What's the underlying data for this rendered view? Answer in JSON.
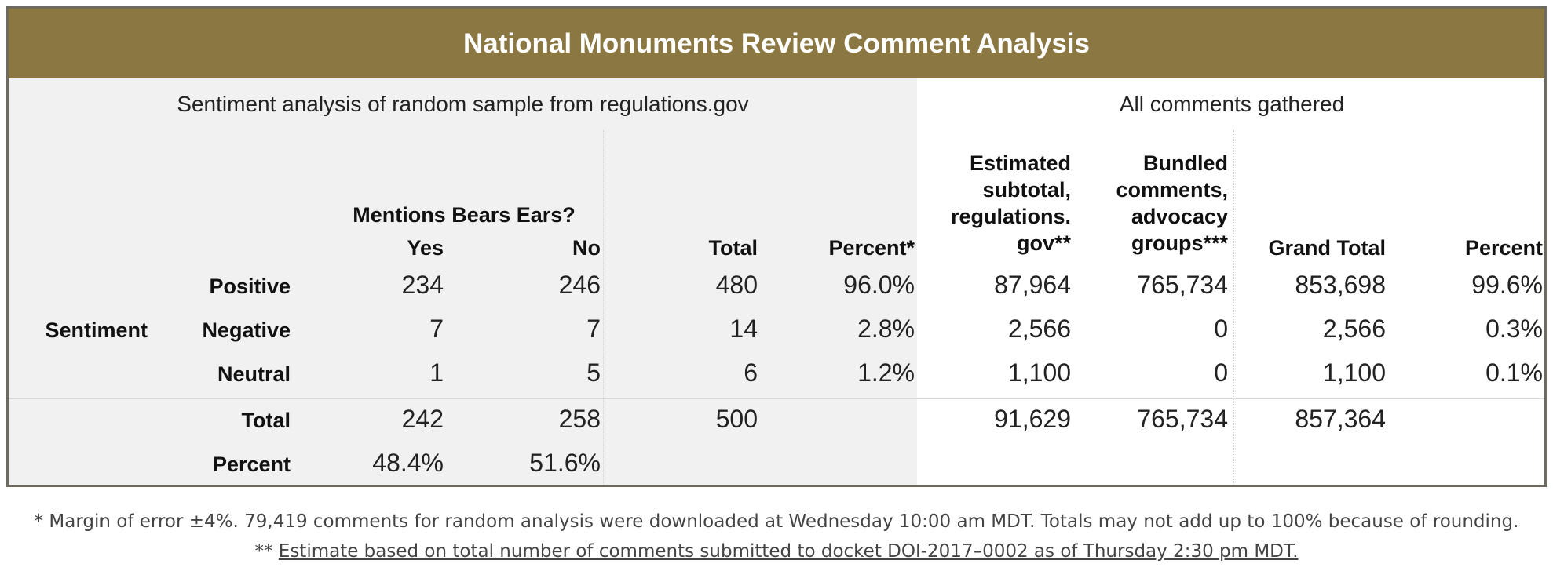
{
  "title": "National Monuments Review Comment Analysis",
  "sections": {
    "left": "Sentiment analysis of random sample from regulations.gov",
    "right": "All comments gathered"
  },
  "headers": {
    "mentions_group": "Mentions Bears Ears?",
    "yes": "Yes",
    "no": "No",
    "total": "Total",
    "percent_star": "Percent*",
    "estimated_subtotal": "Estimated subtotal, regulations. gov**",
    "estimated_lines": [
      "Estimated",
      "subtotal,",
      "regulations.",
      "gov**"
    ],
    "bundled": "Bundled comments, advocacy groups***",
    "bundled_lines": [
      "Bundled",
      "comments,",
      "advocacy",
      "groups***"
    ],
    "grand_total": "Grand Total",
    "percent": "Percent"
  },
  "row_group_label": "Sentiment",
  "rows": [
    {
      "label": "Positive",
      "yes": "234",
      "no": "246",
      "total": "480",
      "percent_star": "96.0%",
      "estimated": "87,964",
      "bundled": "765,734",
      "grand_total": "853,698",
      "percent": "99.6%"
    },
    {
      "label": "Negative",
      "yes": "7",
      "no": "7",
      "total": "14",
      "percent_star": "2.8%",
      "estimated": "2,566",
      "bundled": "0",
      "grand_total": "2,566",
      "percent": "0.3%"
    },
    {
      "label": "Neutral",
      "yes": "1",
      "no": "5",
      "total": "6",
      "percent_star": "1.2%",
      "estimated": "1,100",
      "bundled": "0",
      "grand_total": "1,100",
      "percent": "0.1%"
    }
  ],
  "totals": {
    "label": "Total",
    "yes": "242",
    "no": "258",
    "total": "500",
    "estimated": "91,629",
    "bundled": "765,734",
    "grand_total": "857,364"
  },
  "percent_row": {
    "label": "Percent",
    "yes": "48.4%",
    "no": "51.6%"
  },
  "footnotes": {
    "line1": "* Margin of error ±4%. 79,419 comments for random analysis were downloaded at Wednesday 10:00 am MDT. Totals may not add up to 100% because of rounding.",
    "line2_prefix": "** ",
    "line2_link": "Estimate based on total number of comments submitted to docket DOI-2017–0002 as of Thursday 2:30 pm MDT."
  },
  "colors": {
    "title_bar": "#8a7741",
    "left_panel": "#f1f1f1",
    "right_panel": "#ffffff",
    "border": "#6e6a60"
  }
}
